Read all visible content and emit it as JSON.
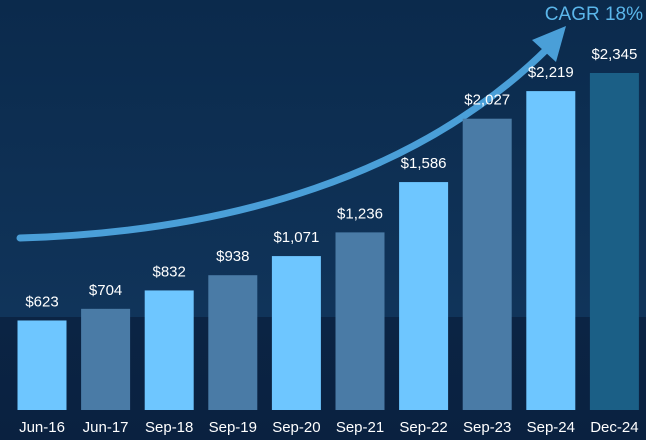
{
  "chart_data": {
    "type": "bar",
    "annotation": "CAGR 18%",
    "categories": [
      "Jun-16",
      "Jun-17",
      "Sep-18",
      "Sep-19",
      "Sep-20",
      "Sep-21",
      "Sep-22",
      "Sep-23",
      "Sep-24",
      "Dec-24"
    ],
    "values": [
      623,
      704,
      832,
      938,
      1071,
      1236,
      1586,
      2027,
      2219,
      2345
    ],
    "value_labels": [
      "$623",
      "$704",
      "$832",
      "$938",
      "$1,071",
      "$1,236",
      "$1,586",
      "$2,027",
      "$2,219",
      "$2,345"
    ],
    "colors": [
      "#6ec6ff",
      "#4a7ba6",
      "#6ec6ff",
      "#4a7ba6",
      "#6ec6ff",
      "#4a7ba6",
      "#6ec6ff",
      "#4a7ba6",
      "#6ec6ff",
      "#1b5f86"
    ]
  }
}
